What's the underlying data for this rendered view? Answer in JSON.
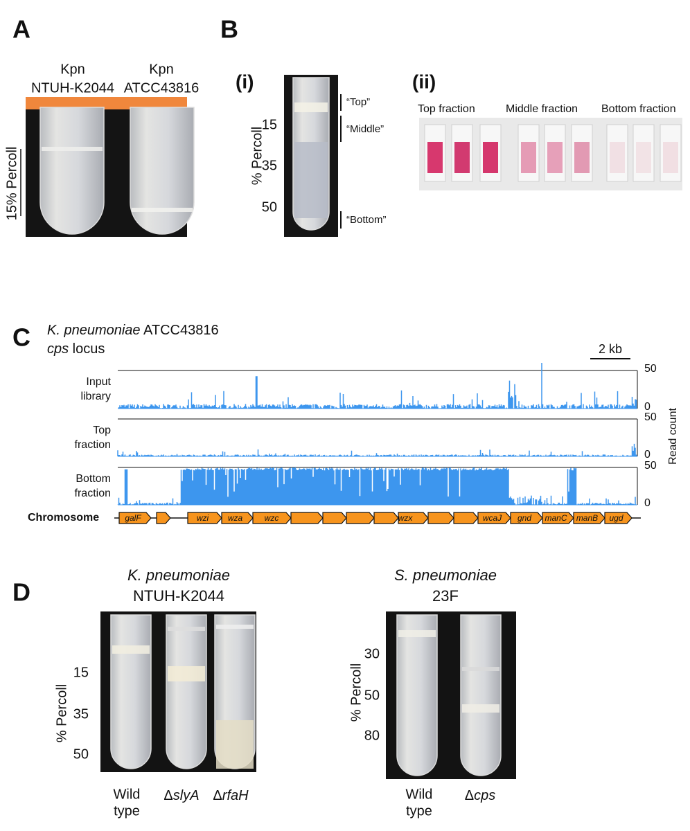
{
  "panels": {
    "A": {
      "label": "A",
      "tubes": [
        {
          "line1": "Kpn",
          "line2": "NTUH-K2044"
        },
        {
          "line1": "Kpn",
          "line2": "ATCC43816"
        }
      ],
      "axis_label": "15% Percoll"
    },
    "B": {
      "label": "B",
      "i": {
        "label": "(i)",
        "axis_label": "% Percoll",
        "ticks": [
          15,
          35,
          50
        ],
        "fractions": [
          "“Top”",
          "“Middle”",
          "“Bottom”"
        ]
      },
      "ii": {
        "label": "(ii)",
        "fractions": [
          "Top fraction",
          "Middle fraction",
          "Bottom fraction"
        ]
      }
    },
    "C": {
      "label": "C",
      "title_italic": "K. pneumoniae",
      "title_rest": "ATCC43816",
      "subtitle_italic": "cps",
      "subtitle_rest": "locus",
      "scale": "2 kb",
      "tracks": [
        {
          "line1": "Input",
          "line2": "library"
        },
        {
          "line1": "Top",
          "line2": "fraction"
        },
        {
          "line1": "Bottom",
          "line2": "fraction"
        }
      ],
      "ticks": [
        50,
        0
      ],
      "axis_label": "Read count",
      "chromosome_label": "Chromosome",
      "genes": [
        "galF",
        "wzi",
        "wza",
        "wzc",
        "wzx",
        "wcaJ",
        "gnd",
        "manC",
        "manB",
        "ugd"
      ]
    },
    "D": {
      "label": "D",
      "left": {
        "title_italic": "K. pneumoniae",
        "title_rest": "NTUH-K2044",
        "axis_label": "% Percoll",
        "ticks": [
          15,
          35,
          50
        ],
        "strains": [
          {
            "line1": "Wild",
            "line2": "type"
          },
          {
            "delta": "Δ",
            "gene": "slyA"
          },
          {
            "delta": "Δ",
            "gene": "rfaH"
          }
        ]
      },
      "right": {
        "title_italic": "S. pneumoniae",
        "title_rest": "23F",
        "axis_label": "% Percoll",
        "ticks": [
          30,
          50,
          80
        ],
        "strains": [
          {
            "line1": "Wild",
            "line2": "type"
          },
          {
            "delta": "Δ",
            "gene": "cps"
          }
        ]
      }
    }
  }
}
